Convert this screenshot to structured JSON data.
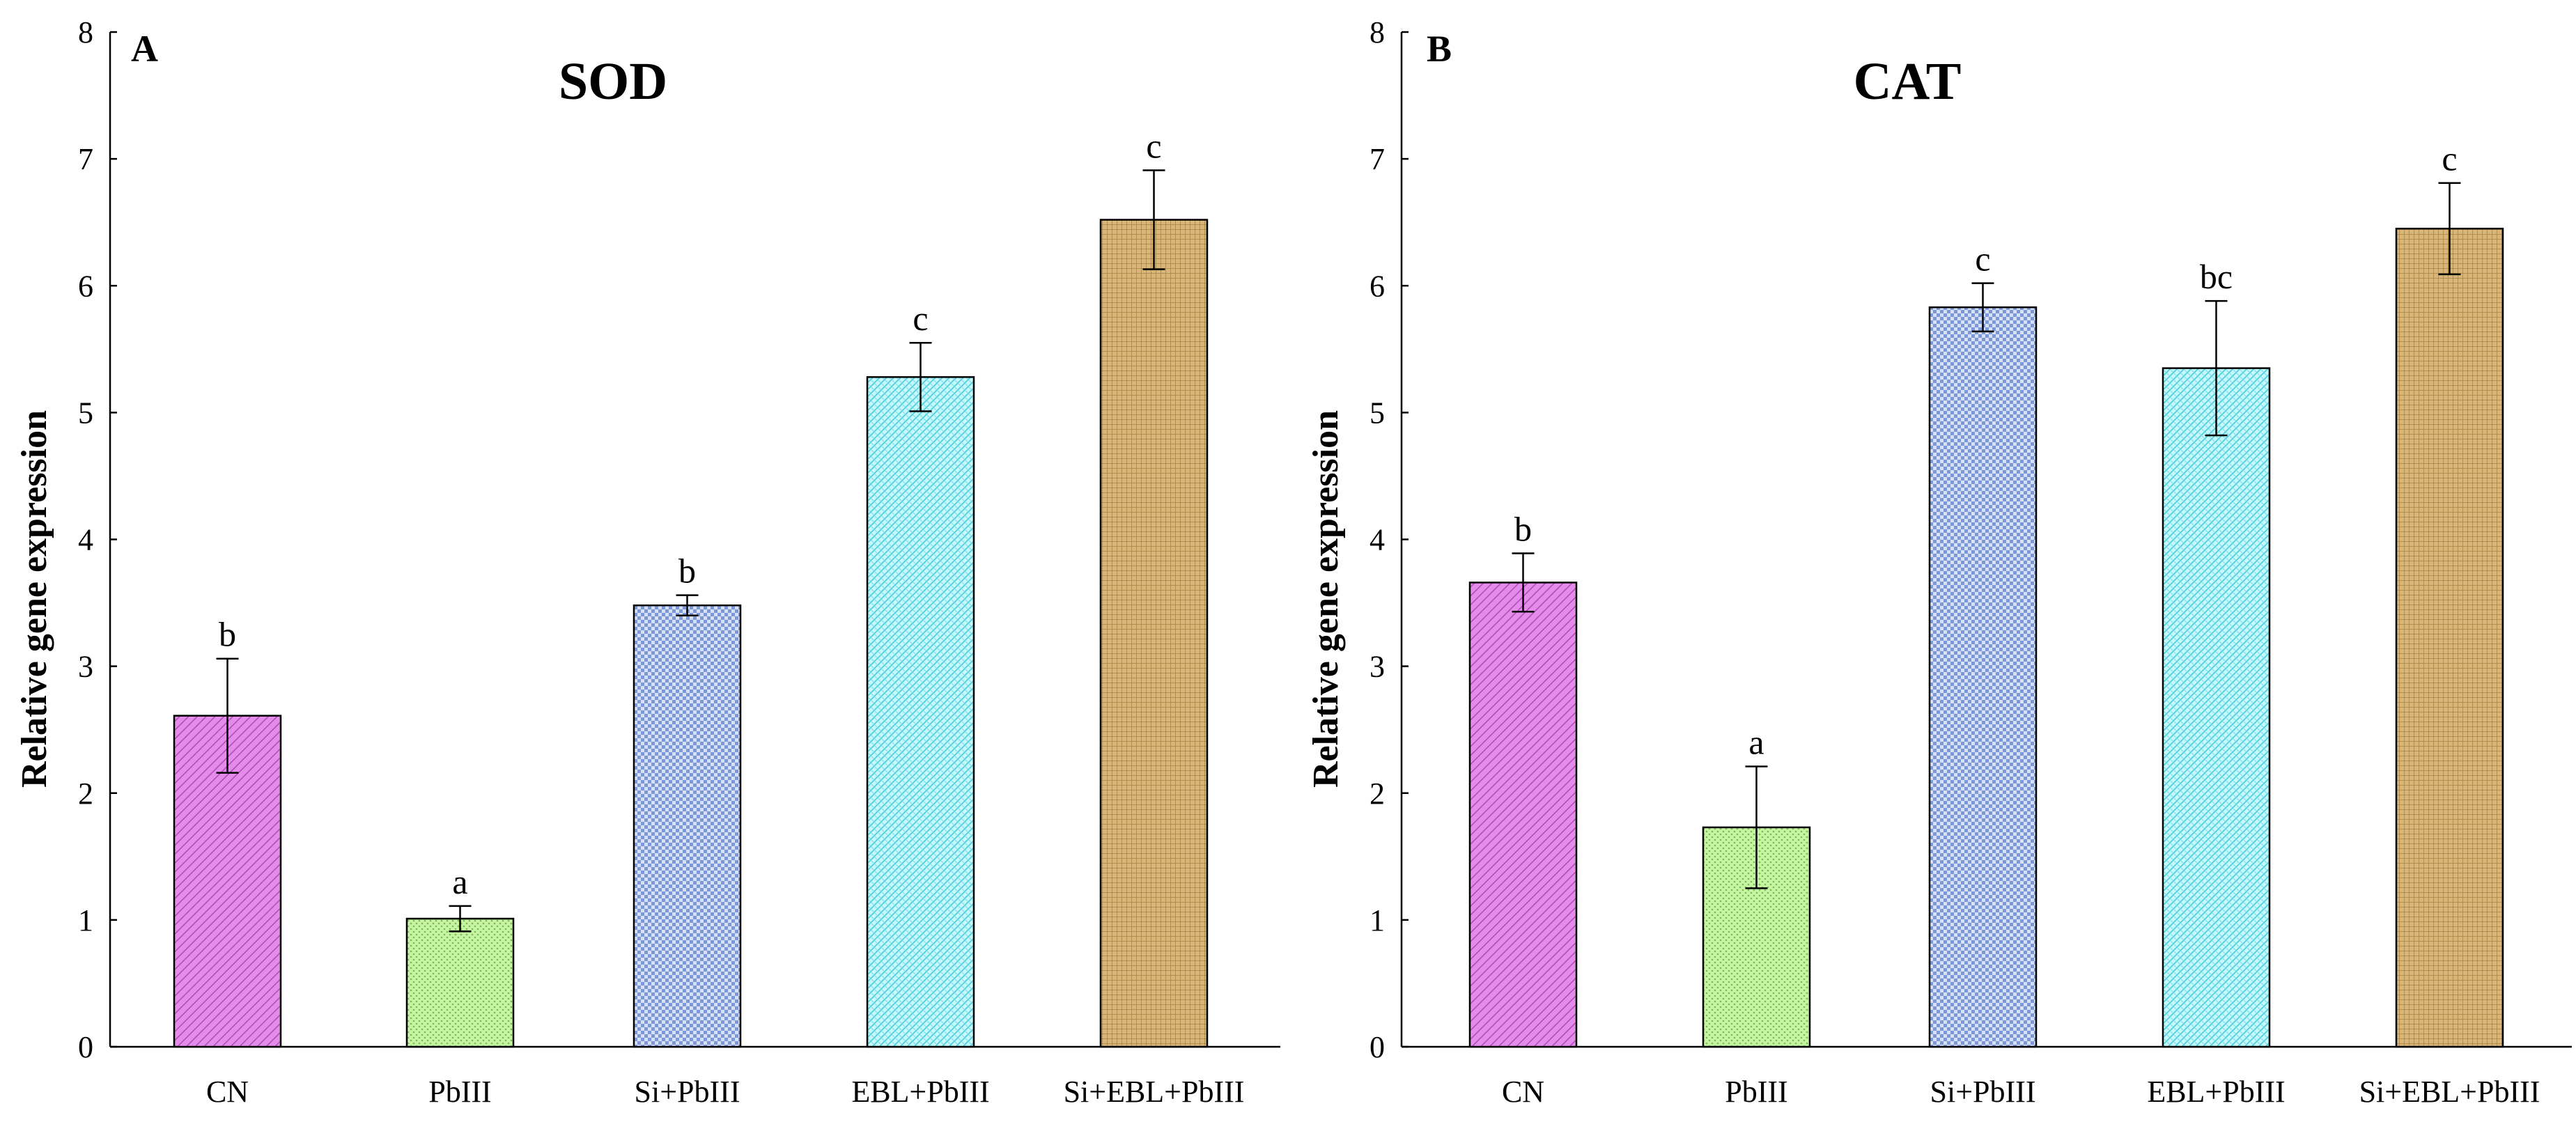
{
  "chart_data": [
    {
      "type": "bar",
      "panel_label": "A",
      "title": "SOD",
      "ylabel": "Relative gene expression",
      "xlabel": "",
      "ylim": [
        0,
        8
      ],
      "yticks": [
        "0",
        "1",
        "2",
        "3",
        "4",
        "5",
        "6",
        "7",
        "8"
      ],
      "categories": [
        "CN",
        "PbIII",
        "Si+PbIII",
        "EBL+PbIII",
        "Si+EBL+PbIII"
      ],
      "values": [
        2.61,
        1.01,
        3.48,
        5.28,
        6.52
      ],
      "errors": [
        0.45,
        0.1,
        0.08,
        0.27,
        0.39
      ],
      "significance": [
        "b",
        "a",
        "b",
        "c",
        "c"
      ],
      "legend": "none"
    },
    {
      "type": "bar",
      "panel_label": "B",
      "title": "CAT",
      "ylabel": "Relative gene expression",
      "xlabel": "",
      "ylim": [
        0,
        8
      ],
      "yticks": [
        "0",
        "1",
        "2",
        "3",
        "4",
        "5",
        "6",
        "7",
        "8"
      ],
      "categories": [
        "CN",
        "PbIII",
        "Si+PbIII",
        "EBL+PbIII",
        "Si+EBL+PbIII"
      ],
      "values": [
        3.66,
        1.73,
        5.83,
        5.35,
        6.45
      ],
      "errors": [
        0.23,
        0.48,
        0.19,
        0.53,
        0.36
      ],
      "significance": [
        "b",
        "a",
        "c",
        "bc",
        "c"
      ],
      "legend": "none"
    }
  ],
  "colors": {
    "bar_fills": [
      "#e07fe8",
      "#c2f59e",
      "#b4c7f0",
      "#b8f7f7",
      "#d4b272"
    ],
    "bar_patterns": [
      "diag",
      "dots",
      "checker",
      "diamond",
      "grid"
    ],
    "axis": "#000000"
  }
}
